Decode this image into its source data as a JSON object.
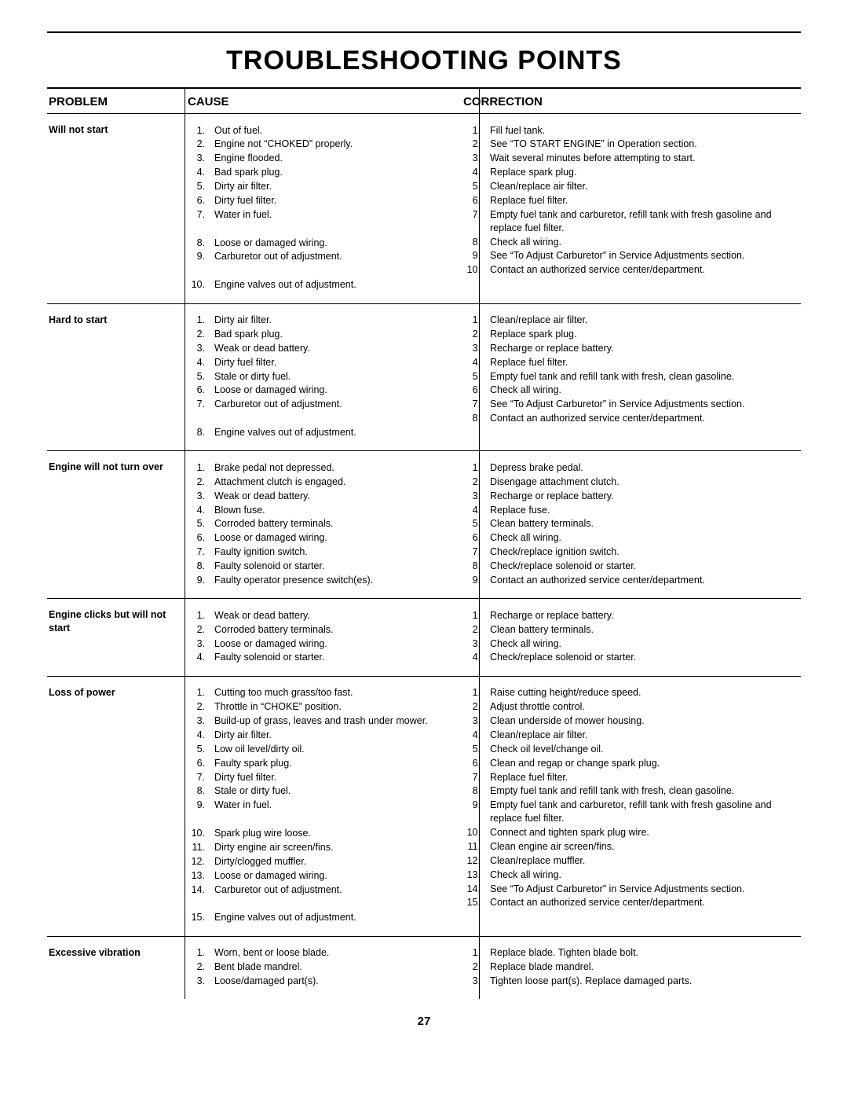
{
  "title": "TROUBLESHOOTING POINTS",
  "page_number": "27",
  "headers": {
    "problem": "PROBLEM",
    "cause": "CAUSE",
    "correction": "CORRECTION"
  },
  "rows": [
    {
      "problem": "Will not start",
      "causes": [
        "Out of fuel.",
        "Engine not “CHOKED” properly.",
        "Engine flooded.",
        "Bad spark plug.",
        "Dirty air filter.",
        "Dirty fuel filter.",
        "Water in fuel.",
        "Loose or damaged wiring.",
        "Carburetor out of adjustment.",
        "Engine valves out of adjustment."
      ],
      "cause_spacers_after": {
        "6": 1,
        "8": 1
      },
      "corrections": [
        "Fill fuel tank.",
        "See “TO START ENGINE” in Operation section.",
        "Wait several minutes before attempting to start.",
        "Replace spark plug.",
        "Clean/replace air filter.",
        "Replace fuel filter.",
        "Empty fuel tank and carburetor, refill tank with fresh gasoline and replace fuel filter.",
        "Check all wiring.",
        "See “To Adjust Carburetor” in Service Adjustments section.",
        "Contact an authorized service center/department."
      ]
    },
    {
      "problem": "Hard to start",
      "causes": [
        "Dirty air filter.",
        "Bad spark plug.",
        "Weak or dead battery.",
        "Dirty fuel filter.",
        "Stale or dirty fuel.",
        "Loose or damaged wiring.",
        "Carburetor out of adjustment.",
        "Engine valves out of adjustment."
      ],
      "cause_spacers_after": {
        "6": 1
      },
      "corrections": [
        "Clean/replace air filter.",
        "Replace spark plug.",
        "Recharge or replace battery.",
        "Replace fuel filter.",
        "Empty fuel tank and refill tank with fresh, clean gasoline.",
        "Check all wiring.",
        "See “To Adjust Carburetor” in Service Adjustments section.",
        "Contact an authorized service center/department."
      ]
    },
    {
      "problem": "Engine will not turn over",
      "causes": [
        "Brake pedal not depressed.",
        "Attachment clutch is engaged.",
        "Weak or dead battery.",
        "Blown fuse.",
        "Corroded battery terminals.",
        "Loose or damaged wiring.",
        "Faulty ignition switch.",
        "Faulty solenoid or starter.",
        "Faulty operator presence switch(es)."
      ],
      "corrections": [
        "Depress brake pedal.",
        "Disengage attachment clutch.",
        "Recharge or replace battery.",
        "Replace fuse.",
        "Clean battery terminals.",
        "Check all wiring.",
        "Check/replace ignition switch.",
        "Check/replace solenoid or starter.",
        "Contact an authorized service center/department."
      ]
    },
    {
      "problem": "Engine clicks but will not start",
      "causes": [
        "Weak or dead battery.",
        "Corroded battery terminals.",
        "Loose or damaged wiring.",
        "Faulty solenoid or starter."
      ],
      "corrections": [
        "Recharge or replace battery.",
        "Clean battery terminals.",
        "Check all wiring.",
        "Check/replace solenoid or starter."
      ]
    },
    {
      "problem": "Loss of power",
      "causes": [
        "Cutting too much grass/too fast.",
        "Throttle in “CHOKE” position.",
        "Build-up of grass, leaves and trash under mower.",
        "Dirty air filter.",
        "Low oil level/dirty oil.",
        "Faulty spark plug.",
        "Dirty fuel filter.",
        "Stale or dirty fuel.",
        "Water in fuel.",
        "Spark plug wire loose.",
        "Dirty engine air screen/fins.",
        "Dirty/clogged muffler.",
        "Loose or damaged wiring.",
        "Carburetor out of adjustment.",
        "Engine valves out of adjustment."
      ],
      "cause_spacers_after": {
        "8": 1,
        "13": 1
      },
      "corrections": [
        "Raise cutting height/reduce speed.",
        "Adjust throttle control.",
        "Clean underside of mower housing.",
        "Clean/replace air filter.",
        "Check oil level/change oil.",
        "Clean and regap or change spark plug.",
        "Replace fuel filter.",
        "Empty fuel tank and refill tank with fresh, clean gasoline.",
        "Empty fuel tank and carburetor, refill tank with fresh gasoline and replace fuel filter.",
        "Connect and tighten spark plug wire.",
        "Clean engine air screen/fins.",
        "Clean/replace muffler.",
        "Check all wiring.",
        "See “To Adjust Carburetor” in Service Adjustments section.",
        "Contact an authorized service center/department."
      ]
    },
    {
      "problem": "Excessive vibration",
      "causes": [
        "Worn, bent or loose blade.",
        "Bent blade mandrel.",
        "Loose/damaged part(s)."
      ],
      "corrections": [
        "Replace blade.  Tighten blade bolt.",
        "Replace blade mandrel.",
        "Tighten loose part(s).  Replace damaged parts."
      ]
    }
  ]
}
